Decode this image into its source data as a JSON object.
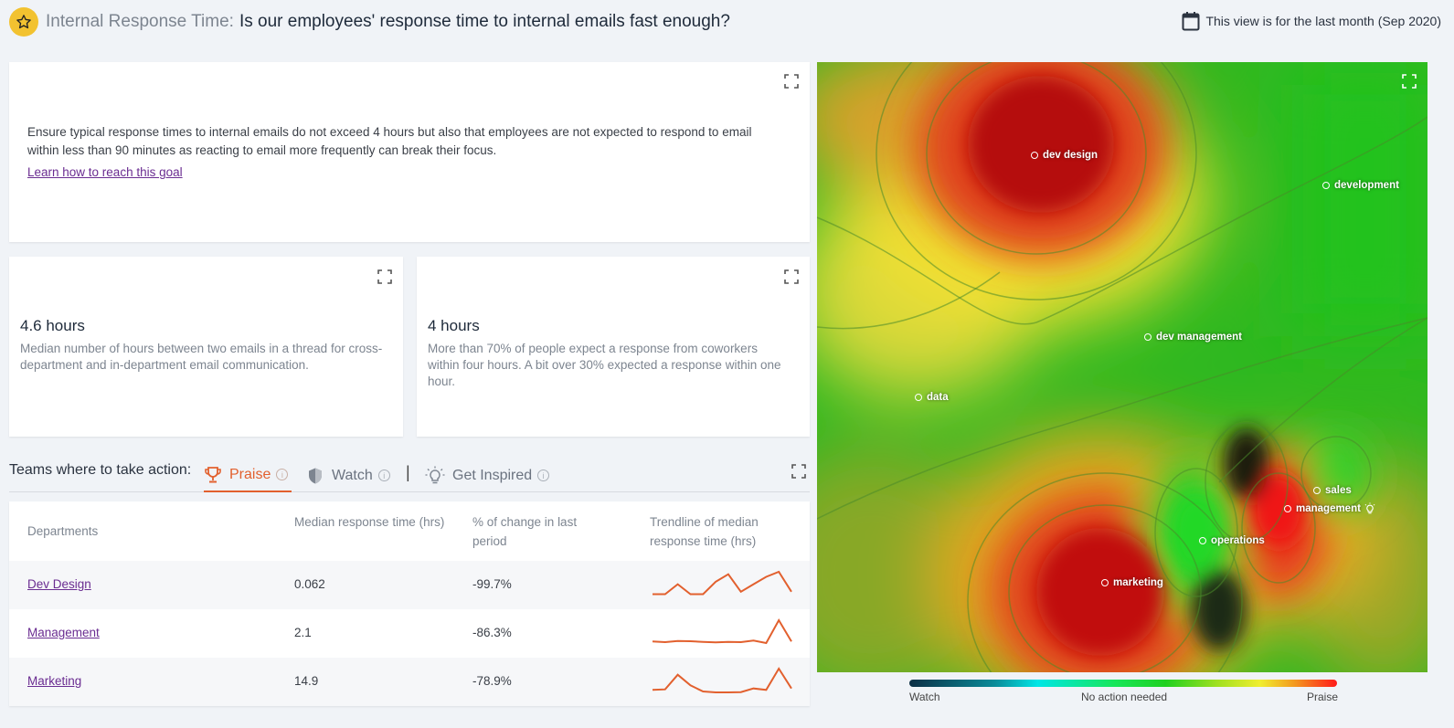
{
  "header": {
    "subtitle": "Internal Response Time:",
    "title": "Is our employees' response time to internal emails fast enough?",
    "period": "This view is for the last month (Sep 2020)"
  },
  "goal": {
    "text": "Ensure typical response times to internal emails do not exceed 4 hours but also that employees are not expected to respond to email within less than 90 minutes as reacting to email more frequently can break their focus.",
    "link": "Learn how to reach this goal"
  },
  "metrics": [
    {
      "value": "4.6 hours",
      "description": "Median number of hours between two emails in a thread for cross-department and in-department email communication."
    },
    {
      "value": "4 hours",
      "description": "More than 70% of people expect a response from coworkers within four hours. A bit over 30% expected a response within one hour."
    }
  ],
  "teams": {
    "label": "Teams where to take action:",
    "tabs": [
      {
        "label": "Praise"
      },
      {
        "label": "Watch"
      },
      {
        "label": "Get Inspired"
      }
    ],
    "separator": "|"
  },
  "table": {
    "headers": [
      "Departments",
      "Median response time (hrs)",
      "% of change in last period",
      "Trendline of median response time (hrs)"
    ],
    "rows": [
      {
        "department": "Dev Design",
        "median": "0.062",
        "change": "-99.7%",
        "trend": [
          2,
          2,
          6,
          2,
          2,
          7,
          10,
          3,
          6,
          9,
          11,
          3
        ]
      },
      {
        "department": "Management",
        "median": "2.1",
        "change": "-86.3%",
        "trend": [
          2,
          1.8,
          2.2,
          2.1,
          1.9,
          1.7,
          1.9,
          1.8,
          2.3,
          1.5,
          9,
          2
        ]
      },
      {
        "department": "Marketing",
        "median": "14.9",
        "change": "-78.9%",
        "trend": [
          2,
          2.2,
          7,
          3.5,
          1.5,
          1.2,
          1.2,
          1.3,
          2.5,
          2,
          9,
          2.5
        ]
      }
    ]
  },
  "map": {
    "teams": [
      {
        "name": "dev design"
      },
      {
        "name": "development"
      },
      {
        "name": "dev management"
      },
      {
        "name": "data"
      },
      {
        "name": "sales"
      },
      {
        "name": "management"
      },
      {
        "name": "operations"
      },
      {
        "name": "marketing"
      }
    ],
    "legend": {
      "left": "Watch",
      "center": "No action needed",
      "right": "Praise"
    }
  },
  "colors": {
    "accent": "#e2602e",
    "link": "#6a2c91",
    "badge": "#f2c230"
  }
}
